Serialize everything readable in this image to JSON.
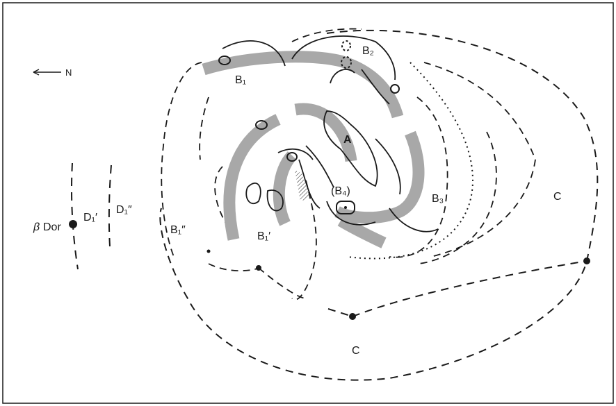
{
  "north_arrow": {
    "label": "N"
  },
  "labels": {
    "beta_dor": "β Dor",
    "d1p": "D₁′",
    "d1pp": "D₁″",
    "b1pp": "B₁″",
    "b1p": "B₁′",
    "b1": "B₁",
    "b2": "B₂",
    "b3": "B₃",
    "b4": "(B₄)",
    "a": "A",
    "c_right": "C",
    "c_bottom": "C"
  },
  "colors": {
    "ink": "#1a1a1a",
    "arm_band": "#a8a8a8",
    "background": "#ffffff"
  }
}
